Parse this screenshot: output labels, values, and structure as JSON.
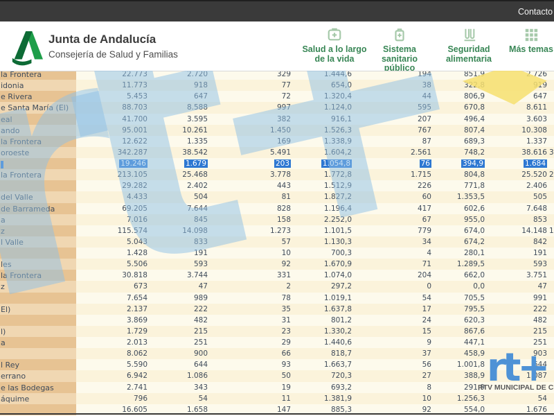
{
  "topbar": {
    "contact_label": "Contacto"
  },
  "header": {
    "title": "Junta de Andalucía",
    "subtitle": "Consejería de Salud y Familias",
    "logo": "junta-de-andalucia-a-logo"
  },
  "nav": {
    "items": [
      {
        "label": "Salud a lo largo\nde la vida",
        "icon": "first-aid-kit-icon"
      },
      {
        "label": "Sistema\nsanitario\npúblico",
        "icon": "medical-bag-icon"
      },
      {
        "label": "Seguridad\nalimentaria",
        "icon": "test-tubes-icon"
      },
      {
        "label": "Más temas",
        "icon": "grid-icon"
      }
    ]
  },
  "table": {
    "note": "municipality column clipped at left viewport edge; only name tails visible; extra 8th column clipped at right edge",
    "rows": [
      {
        "tail": "la Frontera",
        "values": [
          "22.773",
          "2.720",
          "329",
          "1.444,6",
          "194",
          "851,9",
          "2.726",
          ""
        ],
        "highlighted": false
      },
      {
        "tail": "idonia",
        "values": [
          "11.773",
          "918",
          "77",
          "654,0",
          "38",
          "322,8",
          "919",
          ""
        ],
        "highlighted": false
      },
      {
        "tail": "e Rivera",
        "values": [
          "5.453",
          "647",
          "72",
          "1.320,4",
          "44",
          "806,9",
          "647",
          ""
        ],
        "highlighted": false
      },
      {
        "tail": "e Santa María (El)",
        "values": [
          "88.703",
          "8.588",
          "997",
          "1.124,0",
          "595",
          "670,8",
          "8.611",
          ""
        ],
        "highlighted": false
      },
      {
        "tail": "eal",
        "values": [
          "41.700",
          "3.595",
          "382",
          "916,1",
          "207",
          "496,4",
          "3.603",
          ""
        ],
        "highlighted": false
      },
      {
        "tail": "ando",
        "values": [
          "95.001",
          "10.261",
          "1.450",
          "1.526,3",
          "767",
          "807,4",
          "10.308",
          ""
        ],
        "highlighted": false
      },
      {
        "tail": "la Frontera",
        "values": [
          "12.622",
          "1.335",
          "169",
          "1.338,9",
          "87",
          "689,3",
          "1.337",
          ""
        ],
        "highlighted": false
      },
      {
        "tail": "oroeste",
        "values": [
          "342.287",
          "38.542",
          "5.491",
          "1.604,2",
          "2.561",
          "748,2",
          "38.616",
          "3"
        ],
        "highlighted": false
      },
      {
        "tail": "",
        "values": [
          "19.246",
          "1.679",
          "203",
          "1.054,8",
          "76",
          "394,9",
          "1.684",
          ""
        ],
        "highlighted": true
      },
      {
        "tail": "la Frontera",
        "values": [
          "213.105",
          "25.468",
          "3.778",
          "1.772,8",
          "1.715",
          "804,8",
          "25.520",
          "2"
        ],
        "highlighted": false
      },
      {
        "tail": "",
        "values": [
          "29.282",
          "2.402",
          "443",
          "1.512,9",
          "226",
          "771,8",
          "2.406",
          ""
        ],
        "highlighted": false
      },
      {
        "tail": " del Valle",
        "values": [
          "4.433",
          "504",
          "81",
          "1.827,2",
          "60",
          "1.353,5",
          "505",
          ""
        ],
        "highlighted": false
      },
      {
        "tail": "de Barrameda",
        "values": [
          "69.205",
          "7.644",
          "828",
          "1.196,4",
          "417",
          "602,6",
          "7.648",
          ""
        ],
        "highlighted": false
      },
      {
        "tail": "a",
        "values": [
          "7.016",
          "845",
          "158",
          "2.252,0",
          "67",
          "955,0",
          "853",
          ""
        ],
        "highlighted": false
      },
      {
        "tail": "z",
        "values": [
          "115.574",
          "14.098",
          "1.273",
          "1.101,5",
          "779",
          "674,0",
          "14.148",
          "1"
        ],
        "highlighted": false
      },
      {
        "tail": "l Valle",
        "values": [
          "5.043",
          "833",
          "57",
          "1.130,3",
          "34",
          "674,2",
          "842",
          ""
        ],
        "highlighted": false
      },
      {
        "tail": "",
        "values": [
          "1.428",
          "191",
          "10",
          "700,3",
          "4",
          "280,1",
          "191",
          ""
        ],
        "highlighted": false
      },
      {
        "tail": "les",
        "values": [
          "5.506",
          "593",
          "92",
          "1.670,9",
          "71",
          "1.289,5",
          "593",
          ""
        ],
        "highlighted": false
      },
      {
        "tail": "la Frontera",
        "values": [
          "30.818",
          "3.744",
          "331",
          "1.074,0",
          "204",
          "662,0",
          "3.751",
          ""
        ],
        "highlighted": false
      },
      {
        "tail": "z",
        "values": [
          "673",
          "47",
          "2",
          "297,2",
          "0",
          "0,0",
          "47",
          ""
        ],
        "highlighted": false
      },
      {
        "tail": "",
        "values": [
          "7.654",
          "989",
          "78",
          "1.019,1",
          "54",
          "705,5",
          "991",
          ""
        ],
        "highlighted": false
      },
      {
        "tail": "El)",
        "values": [
          "2.137",
          "222",
          "35",
          "1.637,8",
          "17",
          "795,5",
          "222",
          ""
        ],
        "highlighted": false
      },
      {
        "tail": "",
        "values": [
          "3.869",
          "482",
          "31",
          "801,2",
          "24",
          "620,3",
          "482",
          ""
        ],
        "highlighted": false
      },
      {
        "tail": "l)",
        "values": [
          "1.729",
          "215",
          "23",
          "1.330,2",
          "15",
          "867,6",
          "215",
          ""
        ],
        "highlighted": false
      },
      {
        "tail": "a",
        "values": [
          "2.013",
          "251",
          "29",
          "1.440,6",
          "9",
          "447,1",
          "251",
          ""
        ],
        "highlighted": false
      },
      {
        "tail": "",
        "values": [
          "8.062",
          "900",
          "66",
          "818,7",
          "37",
          "458,9",
          "903",
          ""
        ],
        "highlighted": false
      },
      {
        "tail": "l Rey",
        "values": [
          "5.590",
          "644",
          "93",
          "1.663,7",
          "56",
          "1.001,8",
          "644",
          ""
        ],
        "highlighted": false
      },
      {
        "tail": "errano",
        "values": [
          "6.942",
          "1.086",
          "50",
          "720,3",
          "27",
          "388,9",
          "1.087",
          ""
        ],
        "highlighted": false
      },
      {
        "tail": "e las Bodegas",
        "values": [
          "2.741",
          "343",
          "19",
          "693,2",
          "8",
          "291,9",
          "",
          ""
        ],
        "highlighted": false
      },
      {
        "tail": "áquime",
        "values": [
          "796",
          "54",
          "11",
          "1.381,9",
          "10",
          "1.256,3",
          "54",
          ""
        ],
        "highlighted": false
      },
      {
        "tail": "",
        "values": [
          "16.605",
          "1.658",
          "147",
          "885,3",
          "92",
          "554,0",
          "1.676",
          ""
        ],
        "highlighted": false
      }
    ]
  },
  "watermark": {
    "big_text": "rt+",
    "color": "#8ec0e5",
    "arrow_color": "#f6df70"
  },
  "station": {
    "logo_text": "rt+",
    "caption": "RTV MUNICIPAL DE CH",
    "color": "#4e92d6"
  },
  "colors": {
    "topbar": "#3a3a3a",
    "nav_green": "#388655",
    "icon_green": "#a6c9aa",
    "name_col_dark": "#e7c393",
    "name_col_light": "#f0d7b2",
    "row_cream": "#fbf3db",
    "row_white": "#fdfaec",
    "selection_blue": "#2e78d2",
    "table_text": "#3f4b5a"
  }
}
